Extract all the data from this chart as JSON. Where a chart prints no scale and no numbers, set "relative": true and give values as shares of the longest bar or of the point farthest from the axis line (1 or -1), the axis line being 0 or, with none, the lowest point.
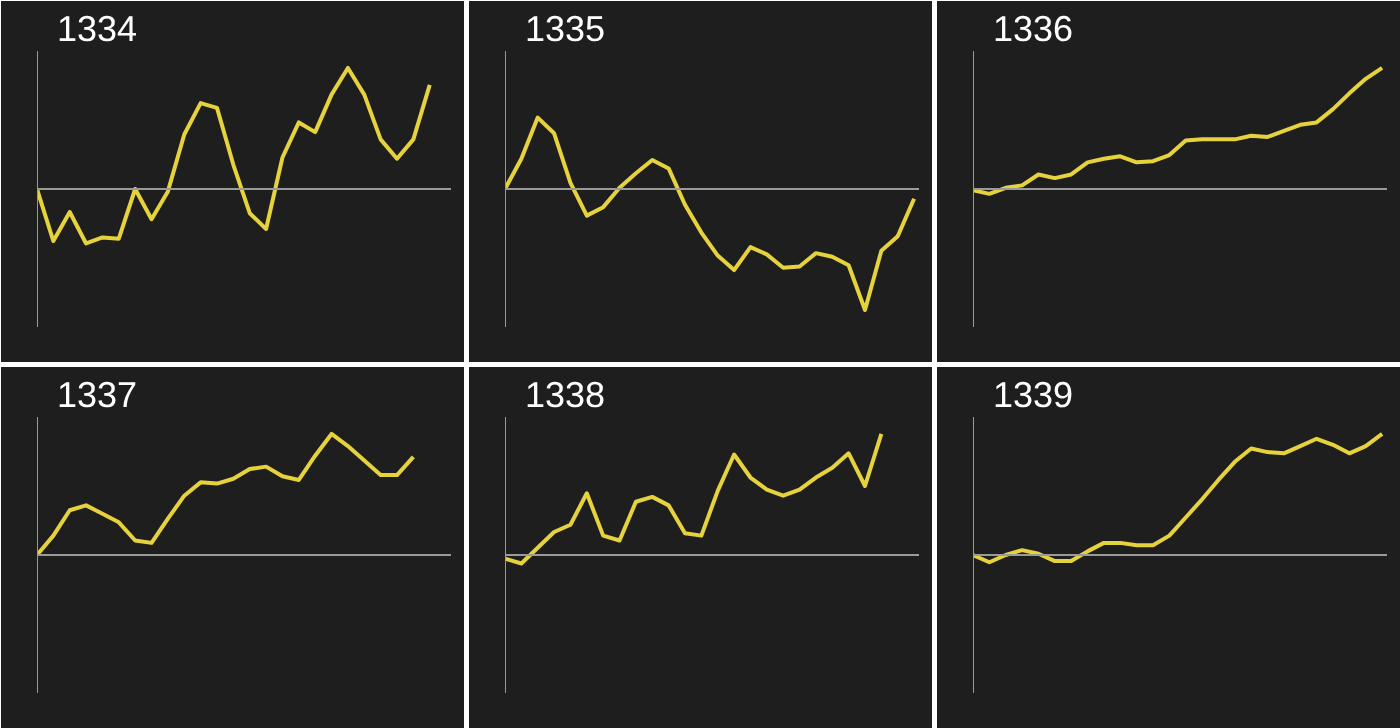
{
  "chart_data": [
    {
      "type": "line",
      "title": "1334",
      "relative": true,
      "categories": [
        null,
        null,
        null,
        null,
        null,
        null,
        null,
        null,
        null,
        null,
        null,
        null,
        null,
        null,
        null,
        null,
        null,
        null,
        null,
        null,
        null,
        null,
        null,
        null,
        null,
        null
      ],
      "series": [
        {
          "color": "#e6d23c",
          "values": [
            0,
            -0.43,
            -0.19,
            -0.45,
            -0.4,
            -0.41,
            0,
            -0.25,
            -0.02,
            0.45,
            0.71,
            0.67,
            0.2,
            -0.2,
            -0.33,
            0.26,
            0.55,
            0.47,
            0.78,
            1,
            0.78,
            0.41,
            0.25,
            0.41,
            0.86,
            null
          ]
        }
      ]
    },
    {
      "type": "line",
      "title": "1335",
      "relative": true,
      "categories": [
        null,
        null,
        null,
        null,
        null,
        null,
        null,
        null,
        null,
        null,
        null,
        null,
        null,
        null,
        null,
        null,
        null,
        null,
        null,
        null,
        null,
        null,
        null,
        null,
        null,
        null
      ],
      "series": [
        {
          "color": "#e6d23c",
          "values": [
            0,
            0.25,
            0.59,
            0.46,
            0.05,
            -0.22,
            -0.15,
            0.01,
            0.13,
            0.24,
            0.17,
            -0.13,
            -0.36,
            -0.55,
            -0.67,
            -0.48,
            -0.54,
            -0.65,
            -0.64,
            -0.53,
            -0.56,
            -0.63,
            -1,
            -0.51,
            -0.39,
            -0.08
          ]
        }
      ]
    },
    {
      "type": "line",
      "title": "1336",
      "relative": true,
      "categories": [
        null,
        null,
        null,
        null,
        null,
        null,
        null,
        null,
        null,
        null,
        null,
        null,
        null,
        null,
        null,
        null,
        null,
        null,
        null,
        null,
        null,
        null,
        null,
        null,
        null,
        null
      ],
      "series": [
        {
          "color": "#e6d23c",
          "values": [
            -0.01,
            -0.04,
            0.01,
            0.03,
            0.12,
            0.09,
            0.12,
            0.22,
            0.25,
            0.27,
            0.22,
            0.23,
            0.28,
            0.4,
            0.41,
            0.41,
            0.41,
            0.44,
            0.43,
            0.48,
            0.53,
            0.55,
            0.66,
            0.79,
            0.91,
            1
          ]
        }
      ]
    },
    {
      "type": "line",
      "title": "1337",
      "relative": true,
      "categories": [
        null,
        null,
        null,
        null,
        null,
        null,
        null,
        null,
        null,
        null,
        null,
        null,
        null,
        null,
        null,
        null,
        null,
        null,
        null,
        null,
        null,
        null,
        null,
        null,
        null,
        null
      ],
      "series": [
        {
          "color": "#e6d23c",
          "values": [
            0,
            0.16,
            0.37,
            0.41,
            0.34,
            0.27,
            0.12,
            0.1,
            0.3,
            0.49,
            0.6,
            0.59,
            0.63,
            0.71,
            0.73,
            0.65,
            0.62,
            0.82,
            1,
            0.9,
            0.78,
            0.66,
            0.66,
            0.81,
            null,
            null
          ]
        }
      ]
    },
    {
      "type": "line",
      "title": "1338",
      "relative": true,
      "categories": [
        null,
        null,
        null,
        null,
        null,
        null,
        null,
        null,
        null,
        null,
        null,
        null,
        null,
        null,
        null,
        null,
        null,
        null,
        null,
        null,
        null,
        null,
        null,
        null,
        null,
        null
      ],
      "series": [
        {
          "color": "#e6d23c",
          "values": [
            -0.03,
            -0.07,
            0.06,
            0.19,
            0.25,
            0.51,
            0.16,
            0.12,
            0.44,
            0.48,
            0.41,
            0.18,
            0.16,
            0.53,
            0.83,
            0.64,
            0.54,
            0.49,
            0.54,
            0.64,
            0.72,
            0.84,
            0.57,
            1,
            null,
            null
          ]
        }
      ]
    },
    {
      "type": "line",
      "title": "1339",
      "relative": true,
      "categories": [
        null,
        null,
        null,
        null,
        null,
        null,
        null,
        null,
        null,
        null,
        null,
        null,
        null,
        null,
        null,
        null,
        null,
        null,
        null,
        null,
        null,
        null,
        null,
        null,
        null,
        null
      ],
      "series": [
        {
          "color": "#e6d23c",
          "values": [
            0,
            -0.06,
            0,
            0.04,
            0.01,
            -0.05,
            -0.05,
            0.03,
            0.1,
            0.1,
            0.08,
            0.08,
            0.16,
            0.31,
            0.46,
            0.62,
            0.77,
            0.88,
            0.85,
            0.84,
            0.9,
            0.96,
            0.91,
            0.84,
            0.9,
            1
          ]
        }
      ]
    }
  ]
}
